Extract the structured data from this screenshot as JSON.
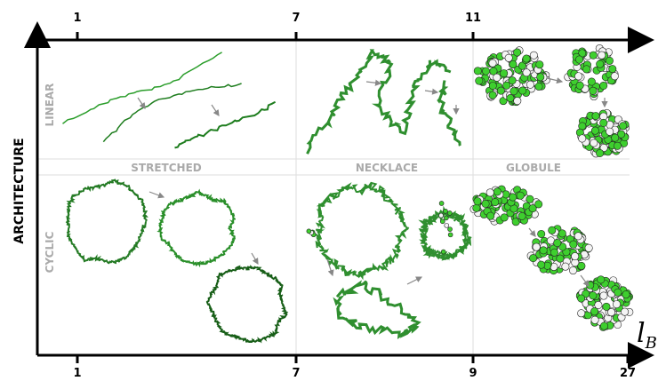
{
  "top_axis": {
    "ticks": [
      "1",
      "7",
      "11"
    ]
  },
  "bottom_axis": {
    "ticks": [
      "1",
      "7",
      "9",
      "27"
    ]
  },
  "y_axis_label": "ARCHITECTURE",
  "x_axis_label": {
    "symbol": "l",
    "subscript": "B"
  },
  "rows": [
    "LINEAR",
    "CYCLIC"
  ],
  "regimes": [
    "STRETCHED",
    "NECKLACE",
    "GLOBULE"
  ]
}
